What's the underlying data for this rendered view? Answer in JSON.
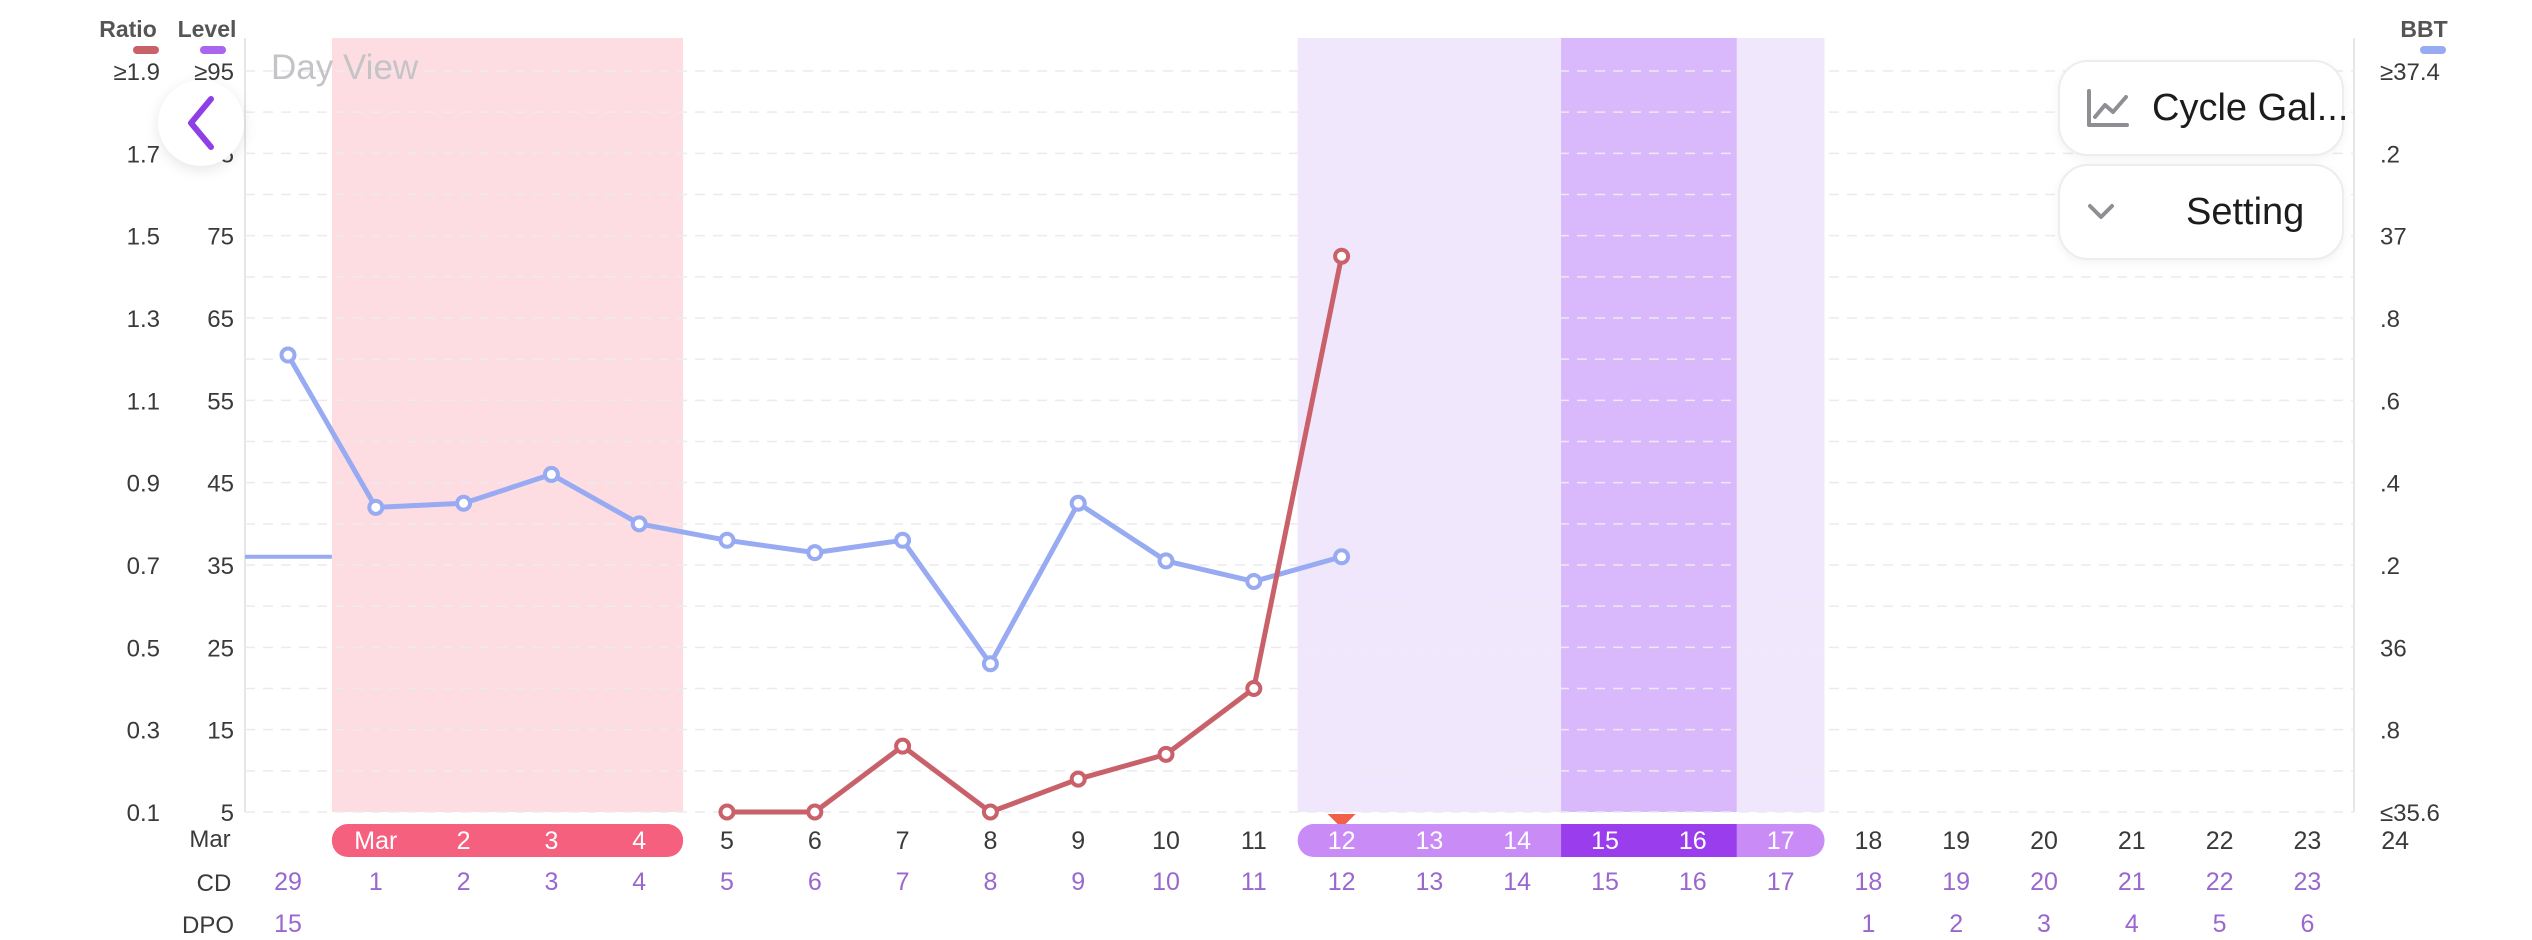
{
  "title": "Day View",
  "colors": {
    "ratio_line": "#c9616a",
    "bbt_line": "#98aaf1",
    "period_band": "#fddde2",
    "period_chip": "#f4607e",
    "fertile_light": "#f1e7fd",
    "fertile_dark": "#d9b8fb",
    "fertile_chip_light": "#c98cf7",
    "fertile_chip_dark": "#9a3ded",
    "level_legend": "#a965f0",
    "back_arrow": "#8f3fe6",
    "cd_text": "#9a67cf",
    "marker": "#f2604a"
  },
  "legend": {
    "ratio": "Ratio",
    "level": "Level",
    "bbt": "BBT"
  },
  "axes": {
    "ratio_ticks": [
      "≥1.9",
      "1.7",
      "1.5",
      "1.3",
      "1.1",
      "0.9",
      "0.7",
      "0.5",
      "0.3",
      "0.1"
    ],
    "level_ticks": [
      "≥95",
      "85",
      "75",
      "65",
      "55",
      "45",
      "35",
      "25",
      "15",
      "5"
    ],
    "bbt_ticks": [
      "≥37.4",
      ".2",
      "37",
      ".8",
      ".6",
      ".4",
      ".2",
      "36",
      ".8",
      "≤35.6"
    ]
  },
  "row_labels": {
    "month": "Mar",
    "cd": "CD",
    "dpo": "DPO"
  },
  "controls": {
    "gallery_label": "Cycle Gal...",
    "setting_label": "Setting"
  },
  "chart_data": {
    "type": "line",
    "x": [
      "Mar",
      "2",
      "3",
      "4",
      "5",
      "6",
      "7",
      "8",
      "9",
      "10",
      "11",
      "12",
      "13",
      "14",
      "15",
      "16",
      "17",
      "18",
      "19",
      "20",
      "21",
      "22",
      "23",
      "24"
    ],
    "leading_day": "29",
    "cd": [
      "1",
      "2",
      "3",
      "4",
      "5",
      "6",
      "7",
      "8",
      "9",
      "10",
      "11",
      "12",
      "13",
      "14",
      "15",
      "16",
      "17",
      "18",
      "19",
      "20",
      "21",
      "22",
      "23"
    ],
    "dpo": [
      "1",
      "2",
      "3",
      "4",
      "5",
      "6"
    ],
    "dpo_leading": "15",
    "ratio_series": {
      "points": [
        [
          5,
          0.1
        ],
        [
          6,
          0.1
        ],
        [
          7,
          0.26
        ],
        [
          8,
          0.1
        ],
        [
          9,
          0.18
        ],
        [
          10,
          0.24
        ],
        [
          11,
          0.4
        ],
        [
          12,
          1.45
        ]
      ]
    },
    "bbt_series": {
      "prior_level": 36.22,
      "points": [
        [
          0,
          36.71
        ],
        [
          1,
          36.34
        ],
        [
          2,
          36.35
        ],
        [
          3,
          36.42
        ],
        [
          4,
          36.3
        ],
        [
          5,
          36.26
        ],
        [
          6,
          36.23
        ],
        [
          7,
          36.26
        ],
        [
          8,
          35.96
        ],
        [
          9,
          36.35
        ],
        [
          10,
          36.21
        ],
        [
          11,
          36.16
        ],
        [
          12,
          36.22
        ]
      ]
    },
    "period_days": [
      1,
      2,
      3,
      4
    ],
    "fertile_window_days": [
      12,
      13,
      14,
      15,
      16,
      17
    ],
    "peak_days": [
      15,
      16
    ],
    "marker_day": 12,
    "ratio_range": [
      0.1,
      1.9
    ],
    "level_range": [
      5,
      95
    ],
    "bbt_range": [
      35.6,
      37.4
    ],
    "grid": true
  }
}
